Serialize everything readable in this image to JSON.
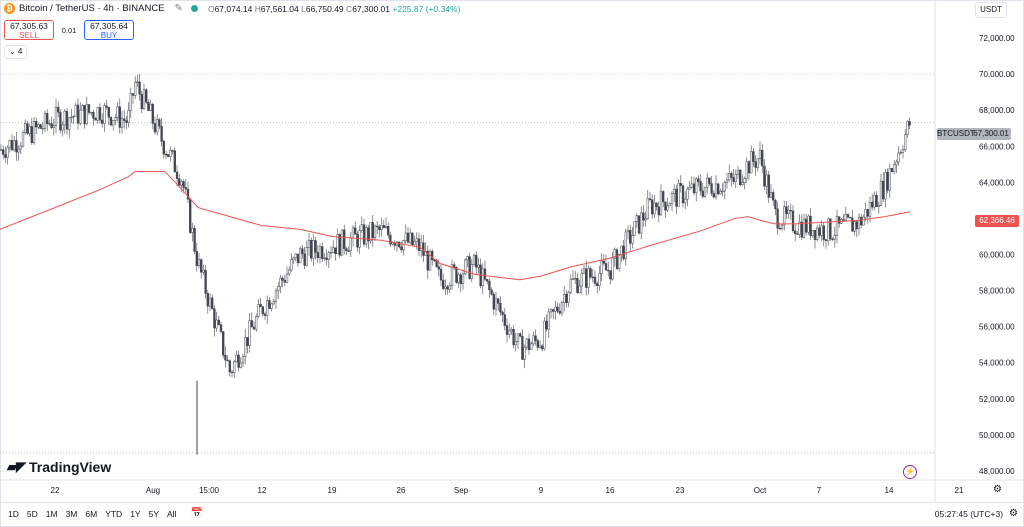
{
  "header": {
    "symbol": "Bitcoin / TetherUS · 4h · BINANCE",
    "ohlc": {
      "o_label": "O",
      "o": "67,074.14",
      "h_label": "H",
      "h": "67,561.04",
      "l_label": "L",
      "l": "66,750.49",
      "c_label": "C",
      "c": "67,300.01",
      "change": "+225.87 (+0.34%)"
    },
    "logo_letter": "₿",
    "icons": [
      "pencil-icon",
      "eye-icon",
      "market-status-dot"
    ]
  },
  "trade": {
    "sell_price": "67,305.63",
    "sell_label": "SELL",
    "spread": "0.01",
    "buy_price": "67,305.64",
    "buy_label": "BUY"
  },
  "indicator_toggle": "⌄ 4",
  "currency": "USDT",
  "price_axis": {
    "labels": [
      "72,000.00",
      "70,000.00",
      "68,000.00",
      "66,000.00",
      "64,000.00",
      "62,000.00",
      "60,000.00",
      "58,000.00",
      "56,000.00",
      "54,000.00",
      "52,000.00",
      "50,000.00",
      "48,000.00"
    ]
  },
  "last_price_tag": {
    "name": "BTCUSDT",
    "value": "67,300.01"
  },
  "ma_tag": {
    "value": "62,366.46"
  },
  "time_axis": {
    "labels": [
      "22",
      "Aug",
      "15:00",
      "12",
      "19",
      "26",
      "Sep",
      "9",
      "16",
      "23",
      "Oct",
      "7",
      "14",
      "21"
    ]
  },
  "brand": "TradingView",
  "bottom_bar": {
    "ranges": [
      "1D",
      "5D",
      "1M",
      "3M",
      "6M",
      "YTD",
      "1Y",
      "5Y",
      "All"
    ],
    "clock": "05:27:45 (UTC+3)"
  },
  "colors": {
    "up": "#26a69a",
    "down": "#131722",
    "candle": "#434651",
    "ma": "#ef5350",
    "grid": "#f0f3fa",
    "accent": "#2962ff"
  },
  "chart_data": {
    "type": "line",
    "title": "",
    "xlabel": "",
    "ylabel": "",
    "ylim": [
      47500,
      73000
    ],
    "x": [
      "Jul 19",
      "Jul 22",
      "Jul 26",
      "Jul 29",
      "Aug 1",
      "Aug 3",
      "Aug 5",
      "Aug 8",
      "Aug 12",
      "Aug 15",
      "Aug 19",
      "Aug 22",
      "Aug 26",
      "Aug 29",
      "Sep 1",
      "Sep 4",
      "Sep 7",
      "Sep 9",
      "Sep 12",
      "Sep 16",
      "Sep 19",
      "Sep 23",
      "Sep 27",
      "Sep 30",
      "Oct 1",
      "Oct 3",
      "Oct 7",
      "Oct 10",
      "Oct 12",
      "Oct 14",
      "Oct 15"
    ],
    "series": [
      {
        "values": [
          65800,
          67500,
          68000,
          67400,
          69500,
          66000,
          64200,
          59500,
          53500,
          57000,
          60000,
          60500,
          61300,
          60400,
          58600,
          59400,
          54800,
          55300,
          58400,
          59200,
          62700,
          63700,
          64100,
          65000,
          65400,
          62200,
          61700,
          61300,
          61800,
          63900,
          67300
        ]
      },
      {
        "values": [
          61400,
          62600,
          63600,
          64300,
          64600,
          64600,
          63600,
          62600,
          62100,
          61600,
          61400,
          61000,
          60800,
          60400,
          59500,
          58900,
          58600,
          58800,
          59300,
          59800,
          60500,
          61300,
          62000,
          62100,
          61900,
          61700,
          61700,
          61800,
          61900,
          62100,
          62366
        ]
      }
    ]
  }
}
